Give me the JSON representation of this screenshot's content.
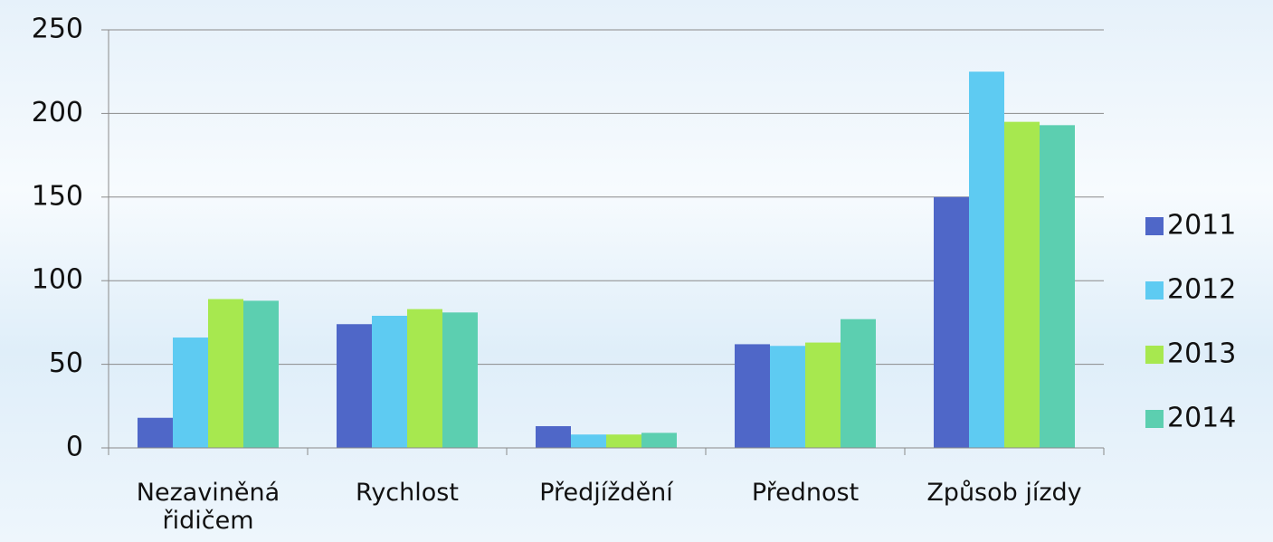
{
  "chart_data": {
    "type": "bar",
    "categories": [
      "Nezaviněná řidičem",
      "Rychlost",
      "Předjíždění",
      "Přednost",
      "Způsob jízdy"
    ],
    "series": [
      {
        "name": "2011",
        "color": "#4f67c8",
        "values": [
          18,
          74,
          13,
          62,
          150
        ]
      },
      {
        "name": "2012",
        "color": "#5ecbf2",
        "values": [
          66,
          79,
          8,
          61,
          225
        ]
      },
      {
        "name": "2013",
        "color": "#a7e84f",
        "values": [
          89,
          83,
          8,
          63,
          195
        ]
      },
      {
        "name": "2014",
        "color": "#5ccfb0",
        "values": [
          88,
          81,
          9,
          77,
          193
        ]
      }
    ],
    "ylim": [
      0,
      250
    ],
    "yticks": [
      0,
      50,
      100,
      150,
      200,
      250
    ],
    "grid": true,
    "legend": "right"
  }
}
